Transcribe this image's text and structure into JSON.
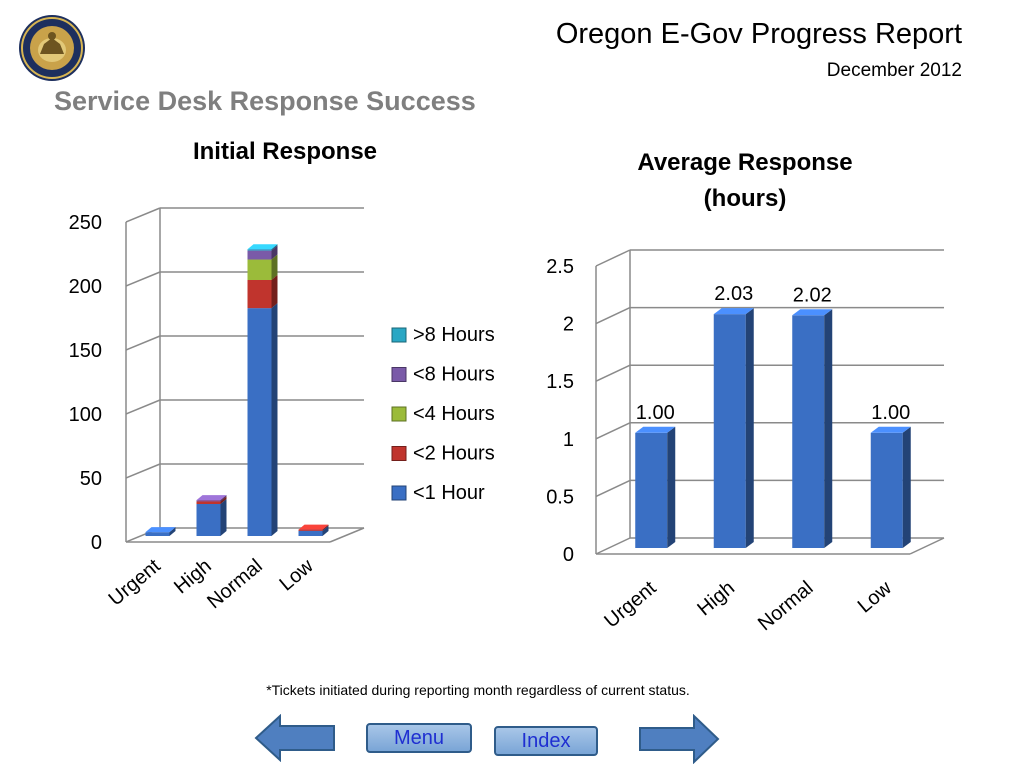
{
  "header": {
    "title": "Oregon E-Gov Progress Report",
    "subtitle": "December 2012",
    "page_heading": "Service Desk Response Success"
  },
  "chart_data": [
    {
      "type": "bar",
      "stacked": true,
      "title": "Initial Response",
      "categories": [
        "Urgent",
        "High",
        "Normal",
        "Low"
      ],
      "series": [
        {
          "name": "<1 Hour",
          "values": [
            3,
            25,
            178,
            4
          ],
          "color": "#3a6fc4"
        },
        {
          "name": "<2 Hours",
          "values": [
            0,
            2,
            22,
            1
          ],
          "color": "#c0342d"
        },
        {
          "name": "<4 Hours",
          "values": [
            0,
            0,
            16,
            0
          ],
          "color": "#9bbb3a"
        },
        {
          "name": "<8 Hours",
          "values": [
            0,
            1,
            7,
            0
          ],
          "color": "#7a5aa8"
        },
        {
          "name": ">8 Hours",
          "values": [
            0,
            0,
            1,
            0
          ],
          "color": "#2aa7c4"
        }
      ],
      "yticks": [
        "250",
        "200",
        "150",
        "100",
        "50",
        "0"
      ],
      "ylim": [
        0,
        250
      ],
      "legend_position": "right"
    },
    {
      "type": "bar",
      "title": "Average Response (hours)",
      "categories": [
        "Urgent",
        "High",
        "Normal",
        "Low"
      ],
      "values": [
        1.0,
        2.03,
        2.02,
        1.0
      ],
      "data_labels": [
        "1.00",
        "2.03",
        "2.02",
        "1.00"
      ],
      "color": "#3a6fc4",
      "yticks": [
        "2.5",
        "2",
        "1.5",
        "1",
        "0.5",
        "0"
      ],
      "ylim": [
        0,
        2.5
      ]
    }
  ],
  "footnote": "*Tickets initiated  during reporting month regardless of current status.",
  "nav": {
    "menu_label": "Menu",
    "index_label": "Index"
  }
}
